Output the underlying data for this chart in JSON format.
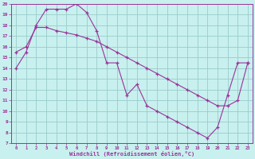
{
  "xlabel": "Windchill (Refroidissement éolien,°C)",
  "bg_color": "#c8f0ee",
  "line_color": "#993399",
  "grid_color": "#99cccc",
  "xlim": [
    -0.5,
    23.5
  ],
  "ylim": [
    7,
    20
  ],
  "xticks": [
    0,
    1,
    2,
    3,
    4,
    5,
    6,
    7,
    8,
    9,
    10,
    11,
    12,
    13,
    14,
    15,
    16,
    17,
    18,
    19,
    20,
    21,
    22,
    23
  ],
  "yticks": [
    7,
    8,
    9,
    10,
    11,
    12,
    13,
    14,
    15,
    16,
    17,
    18,
    19,
    20
  ],
  "line1_x": [
    0,
    1,
    2,
    3,
    4,
    5,
    6,
    7,
    8,
    9,
    10,
    11,
    12,
    13,
    14,
    15,
    16,
    17,
    18,
    19,
    20,
    21,
    22,
    23
  ],
  "line1_y": [
    14.0,
    15.5,
    18.0,
    19.5,
    19.5,
    19.5,
    20.0,
    19.2,
    17.5,
    14.5,
    14.5,
    11.5,
    12.5,
    10.5,
    10.0,
    9.5,
    9.0,
    8.5,
    8.0,
    7.5,
    8.5,
    11.5,
    14.5,
    14.5
  ],
  "line2_x": [
    0,
    1,
    2,
    3,
    4,
    5,
    6,
    7,
    8,
    9,
    10,
    11,
    12,
    13,
    14,
    15,
    16,
    17,
    18,
    19,
    20,
    21,
    22,
    23
  ],
  "line2_y": [
    15.5,
    16.0,
    17.8,
    17.8,
    17.5,
    17.3,
    17.1,
    16.8,
    16.5,
    16.0,
    15.5,
    15.0,
    14.5,
    14.0,
    13.5,
    13.0,
    12.5,
    12.0,
    11.5,
    11.0,
    10.5,
    10.5,
    11.0,
    14.5
  ]
}
